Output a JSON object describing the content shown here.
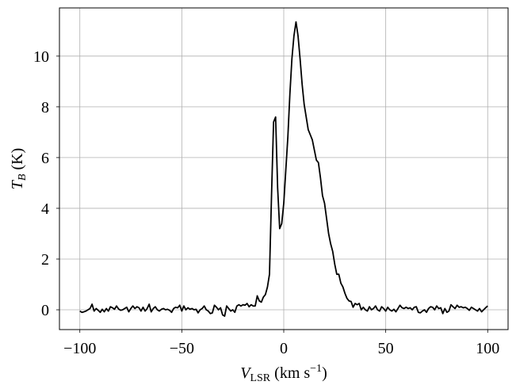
{
  "chart_data": {
    "type": "line",
    "xlabel": [
      "V",
      "LSR",
      " (km s",
      "−1",
      ")"
    ],
    "ylabel": [
      "T",
      "B",
      " (K)"
    ],
    "color": "#000000",
    "grid": true,
    "xlim": [
      -110,
      110
    ],
    "ylim": [
      -0.78,
      11.9
    ],
    "xticks": [
      {
        "value": -100,
        "label": "−100"
      },
      {
        "value": -50,
        "label": "−50"
      },
      0,
      50,
      100
    ],
    "yticks": [
      0,
      2,
      4,
      6,
      8,
      10
    ],
    "x": [
      -100,
      -99,
      -98,
      -97,
      -96,
      -95,
      -94,
      -93,
      -92,
      -91,
      -90,
      -89,
      -88,
      -87,
      -86,
      -85,
      -84,
      -83,
      -82,
      -81,
      -80,
      -79,
      -78,
      -77,
      -76,
      -75,
      -74,
      -73,
      -72,
      -71,
      -70,
      -69,
      -68,
      -67,
      -66,
      -65,
      -64,
      -63,
      -62,
      -61,
      -60,
      -59,
      -58,
      -57,
      -56,
      -55,
      -54,
      -53,
      -52,
      -51,
      -50,
      -49,
      -48,
      -47,
      -46,
      -45,
      -44,
      -43,
      -42,
      -41,
      -40,
      -39,
      -38,
      -37,
      -36,
      -35,
      -34,
      -33,
      -32,
      -31,
      -30,
      -29,
      -28,
      -27,
      -26,
      -25,
      -24,
      -23,
      -22,
      -21,
      -20,
      -19,
      -18,
      -17,
      -16,
      -15,
      -14,
      -13,
      -12,
      -11,
      -10,
      -9,
      -8,
      -7,
      -6,
      -5,
      -4,
      -3,
      -2,
      -1,
      0,
      1,
      2,
      3,
      4,
      5,
      6,
      7,
      8,
      9,
      10,
      11,
      12,
      13,
      14,
      15,
      16,
      17,
      18,
      19,
      20,
      21,
      22,
      23,
      24,
      25,
      26,
      27,
      28,
      29,
      30,
      31,
      32,
      33,
      34,
      35,
      36,
      37,
      38,
      39,
      40,
      41,
      42,
      43,
      44,
      45,
      46,
      47,
      48,
      49,
      50,
      51,
      52,
      53,
      54,
      55,
      56,
      57,
      58,
      59,
      60,
      61,
      62,
      63,
      64,
      65,
      66,
      67,
      68,
      69,
      70,
      71,
      72,
      73,
      74,
      75,
      76,
      77,
      78,
      79,
      80,
      81,
      82,
      83,
      84,
      85,
      86,
      87,
      88,
      89,
      90,
      91,
      92,
      93,
      94,
      95,
      96,
      97,
      98,
      99,
      100
    ],
    "values": [
      -0.05,
      -0.1,
      -0.08,
      -0.05,
      0.0,
      0.05,
      0.22,
      -0.05,
      0.05,
      -0.02,
      -0.1,
      0.02,
      -0.08,
      0.05,
      -0.05,
      0.12,
      0.08,
      0.02,
      0.15,
      0.03,
      -0.02,
      0.0,
      0.05,
      0.1,
      -0.08,
      0.05,
      0.15,
      0.05,
      0.12,
      0.08,
      -0.05,
      0.1,
      -0.05,
      0.05,
      0.22,
      -0.08,
      0.05,
      0.12,
      0.0,
      -0.05,
      0.02,
      0.05,
      0.0,
      0.02,
      -0.02,
      -0.1,
      0.05,
      0.1,
      0.08,
      0.18,
      -0.05,
      0.15,
      0.0,
      0.08,
      0.02,
      0.05,
      0.0,
      0.02,
      -0.12,
      0.0,
      0.05,
      0.15,
      0.0,
      -0.05,
      -0.15,
      -0.12,
      0.18,
      0.1,
      0.0,
      0.08,
      -0.2,
      -0.25,
      0.15,
      0.05,
      -0.05,
      0.0,
      -0.1,
      0.15,
      0.2,
      0.15,
      0.2,
      0.18,
      0.25,
      0.12,
      0.2,
      0.15,
      0.15,
      0.55,
      0.35,
      0.3,
      0.5,
      0.6,
      0.9,
      1.4,
      4.5,
      7.4,
      7.6,
      4.8,
      3.2,
      3.4,
      4.2,
      5.5,
      6.8,
      8.5,
      9.9,
      10.8,
      11.35,
      10.8,
      9.9,
      8.9,
      8.1,
      7.6,
      7.1,
      6.9,
      6.7,
      6.3,
      5.9,
      5.8,
      5.2,
      4.5,
      4.2,
      3.6,
      3.0,
      2.6,
      2.3,
      1.8,
      1.4,
      1.4,
      1.05,
      0.9,
      0.65,
      0.45,
      0.35,
      0.33,
      0.1,
      0.25,
      0.2,
      0.25,
      0.0,
      0.1,
      0.0,
      -0.05,
      0.12,
      0.0,
      0.05,
      0.15,
      0.0,
      -0.05,
      0.12,
      0.05,
      -0.05,
      0.1,
      0.0,
      -0.05,
      0.02,
      -0.08,
      0.05,
      0.18,
      0.08,
      0.05,
      0.1,
      0.05,
      0.08,
      0.0,
      0.1,
      0.12,
      -0.1,
      -0.12,
      -0.05,
      0.0,
      -0.1,
      0.05,
      0.12,
      0.1,
      0.0,
      0.15,
      0.05,
      0.08,
      -0.15,
      0.05,
      -0.1,
      -0.05,
      0.2,
      0.12,
      0.05,
      0.18,
      0.1,
      0.12,
      0.08,
      0.1,
      0.05,
      -0.02,
      0.1,
      0.05,
      0.0,
      -0.05,
      0.05,
      -0.08,
      0.0,
      0.08,
      0.15
    ]
  }
}
